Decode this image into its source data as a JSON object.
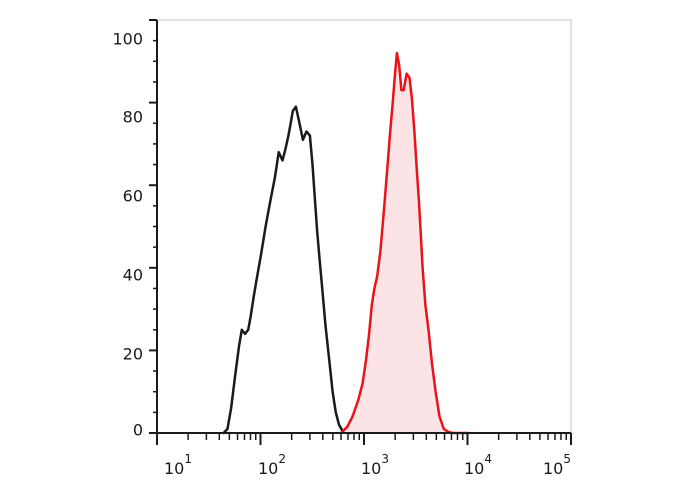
{
  "chart_data": {
    "type": "line",
    "title": "",
    "xlabel": "",
    "ylabel": "",
    "x_scale": "log",
    "xlim": [
      10,
      100000
    ],
    "ylim": [
      0,
      100
    ],
    "grid": false,
    "legend": "none",
    "y_ticks": [
      "0",
      "20",
      "40",
      "60",
      "80",
      "100"
    ],
    "x_ticks": [
      {
        "base": "10",
        "exp": "1"
      },
      {
        "base": "10",
        "exp": "2"
      },
      {
        "base": "10",
        "exp": "3"
      },
      {
        "base": "10",
        "exp": "4"
      },
      {
        "base": "10",
        "exp": "5"
      }
    ],
    "series": [
      {
        "color": "#1a1a1a",
        "fill": "none",
        "x": [
          44,
          48,
          52,
          57,
          62,
          66,
          71,
          76,
          80,
          86,
          93,
          101,
          112,
          124,
          138,
          150,
          163,
          175,
          186,
          196,
          205,
          220,
          238,
          257,
          278,
          300,
          318,
          335,
          352,
          372,
          398,
          425,
          460,
          497,
          534,
          574,
          620,
          660,
          690,
          710,
          740
        ],
        "y": [
          0,
          1,
          6,
          14,
          21,
          25,
          24,
          25,
          28,
          33,
          38,
          43,
          50,
          56,
          62,
          68,
          66,
          69,
          72,
          75,
          78,
          79,
          75,
          71,
          73,
          72,
          65,
          57,
          49,
          42,
          34,
          26,
          18,
          10,
          5,
          2,
          0.5,
          0.2,
          0.1,
          0,
          0
        ]
      },
      {
        "color": "#e8141a",
        "fill": "#fce4e6",
        "x": [
          600,
          690,
          775,
          880,
          970,
          1050,
          1120,
          1190,
          1260,
          1340,
          1440,
          1570,
          1690,
          1790,
          1880,
          1980,
          2080,
          2190,
          2300,
          2420,
          2580,
          2750,
          2900,
          3070,
          3250,
          3380,
          3520,
          3680,
          3920,
          4200,
          4530,
          4920,
          5360,
          5900,
          6500,
          7200,
          8000,
          8800,
          9500,
          10200
        ],
        "y": [
          0,
          1.5,
          4,
          8,
          12,
          18,
          24,
          31,
          35,
          38,
          44,
          55,
          65,
          73,
          79,
          86,
          92,
          89,
          83,
          83,
          87,
          86,
          81,
          73,
          63,
          57,
          49,
          40,
          31,
          25,
          17,
          10,
          4,
          1,
          0.3,
          0,
          0,
          0,
          0,
          0
        ]
      }
    ]
  }
}
